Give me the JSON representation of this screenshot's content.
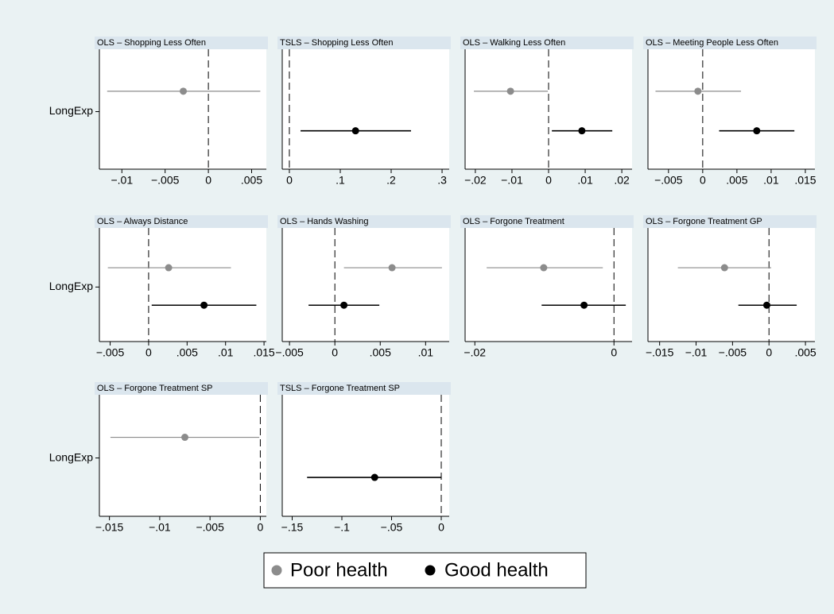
{
  "chart_data": [
    {
      "type": "coefplot",
      "title": "OLS – Shopping Less Often",
      "categories": [
        "LongExp"
      ],
      "xline": 0,
      "series": [
        {
          "name": "Poor health",
          "color": "#8c8c8c",
          "values": [
            -0.0029
          ],
          "lower": [
            -0.0117
          ],
          "upper": [
            0.006
          ]
        }
      ],
      "xlim": [
        -0.0126,
        0.0067
      ],
      "xticks": [
        {
          "value": -0.01,
          "label": "−.01"
        },
        {
          "value": -0.005,
          "label": "−.005"
        },
        0,
        {
          "value": 0.005,
          "label": ".005"
        }
      ]
    },
    {
      "type": "coefplot",
      "title": "TSLS – Shopping Less Often",
      "categories": [
        "LongExp"
      ],
      "xline": 0,
      "series": [
        {
          "name": "Good health",
          "color": "#000000",
          "values": [
            0.13
          ],
          "lower": [
            0.022
          ],
          "upper": [
            0.239
          ]
        }
      ],
      "xlim": [
        -0.014,
        0.314
      ],
      "xticks": [
        0,
        {
          "value": 0.1,
          "label": ".1"
        },
        {
          "value": 0.2,
          "label": ".2"
        },
        {
          "value": 0.3,
          "label": ".3"
        }
      ]
    },
    {
      "type": "coefplot",
      "title": "OLS – Walking Less Often",
      "categories": [
        "LongExp"
      ],
      "xline": 0,
      "series": [
        {
          "name": "Poor health",
          "color": "#8c8c8c",
          "values": [
            -0.0104
          ],
          "lower": [
            -0.0204
          ],
          "upper": [
            -0.0002
          ]
        },
        {
          "name": "Good health",
          "color": "#000000",
          "values": [
            0.0091
          ],
          "lower": [
            0.0009
          ],
          "upper": [
            0.0174
          ]
        }
      ],
      "xlim": [
        -0.0228,
        0.0228
      ],
      "xticks": [
        {
          "value": -0.02,
          "label": "−.02"
        },
        {
          "value": -0.01,
          "label": "−.01"
        },
        0,
        {
          "value": 0.01,
          "label": ".01"
        },
        {
          "value": 0.02,
          "label": ".02"
        }
      ]
    },
    {
      "type": "coefplot",
      "title": "OLS – Meeting People Less Often",
      "categories": [
        "LongExp"
      ],
      "xline": 0,
      "series": [
        {
          "name": "Poor health",
          "color": "#8c8c8c",
          "values": [
            -0.0007
          ],
          "lower": [
            -0.0069
          ],
          "upper": [
            0.0056
          ]
        },
        {
          "name": "Good health",
          "color": "#000000",
          "values": [
            0.0079
          ],
          "lower": [
            0.0024
          ],
          "upper": [
            0.0134
          ]
        }
      ],
      "xlim": [
        -0.008,
        0.0164
      ],
      "xticks": [
        {
          "value": -0.005,
          "label": "−.005"
        },
        0,
        {
          "value": 0.005,
          "label": ".005"
        },
        {
          "value": 0.01,
          "label": ".01"
        },
        {
          "value": 0.015,
          "label": ".015"
        }
      ]
    },
    {
      "type": "coefplot",
      "title": "OLS – Always Distance",
      "categories": [
        "LongExp"
      ],
      "xline": 0,
      "series": [
        {
          "name": "Poor health",
          "color": "#8c8c8c",
          "values": [
            0.0026
          ],
          "lower": [
            -0.0053
          ],
          "upper": [
            0.0107
          ]
        },
        {
          "name": "Good health",
          "color": "#000000",
          "values": [
            0.0072
          ],
          "lower": [
            0.0004
          ],
          "upper": [
            0.014
          ]
        }
      ],
      "xlim": [
        -0.0064,
        0.0153
      ],
      "xticks": [
        {
          "value": -0.005,
          "label": "−.005"
        },
        0,
        {
          "value": 0.005,
          "label": ".005"
        },
        {
          "value": 0.01,
          "label": ".01"
        },
        {
          "value": 0.015,
          "label": ".015"
        }
      ]
    },
    {
      "type": "coefplot",
      "title": "OLS – Hands Washing",
      "categories": [
        "LongExp"
      ],
      "xline": 0,
      "series": [
        {
          "name": "Poor health",
          "color": "#8c8c8c",
          "values": [
            0.0063
          ],
          "lower": [
            0.001
          ],
          "upper": [
            0.0118
          ]
        },
        {
          "name": "Good health",
          "color": "#000000",
          "values": [
            0.001
          ],
          "lower": [
            -0.0029
          ],
          "upper": [
            0.0049
          ]
        }
      ],
      "xlim": [
        -0.0058,
        0.0126
      ],
      "xticks": [
        {
          "value": -0.005,
          "label": "−.005"
        },
        0,
        {
          "value": 0.005,
          "label": ".005"
        },
        {
          "value": 0.01,
          "label": ".01"
        }
      ]
    },
    {
      "type": "coefplot",
      "title": "OLS – Forgone Treatment",
      "categories": [
        "LongExp"
      ],
      "xline": 0,
      "series": [
        {
          "name": "Poor health",
          "color": "#8c8c8c",
          "values": [
            -0.0101
          ],
          "lower": [
            -0.0183
          ],
          "upper": [
            -0.0016
          ]
        },
        {
          "name": "Good health",
          "color": "#000000",
          "values": [
            -0.0043
          ],
          "lower": [
            -0.0104
          ],
          "upper": [
            0.0017
          ]
        }
      ],
      "xlim": [
        -0.0214,
        0.0026
      ],
      "xticks": [
        {
          "value": -0.02,
          "label": "−.02"
        },
        0
      ]
    },
    {
      "type": "coefplot",
      "title": "OLS – Forgone Treatment GP",
      "categories": [
        "LongExp"
      ],
      "xline": 0,
      "series": [
        {
          "name": "Poor health",
          "color": "#8c8c8c",
          "values": [
            -0.0061
          ],
          "lower": [
            -0.0125
          ],
          "upper": [
            0.0003
          ]
        },
        {
          "name": "Good health",
          "color": "#000000",
          "values": [
            -0.0003
          ],
          "lower": [
            -0.0042
          ],
          "upper": [
            0.0038
          ]
        }
      ],
      "xlim": [
        -0.0166,
        0.0063
      ],
      "xticks": [
        {
          "value": -0.015,
          "label": "−.015"
        },
        {
          "value": -0.01,
          "label": "−.01"
        },
        {
          "value": -0.005,
          "label": "−.005"
        },
        0,
        {
          "value": 0.005,
          "label": ".005"
        }
      ]
    },
    {
      "type": "coefplot",
      "title": "OLS – Forgone Treatment SP",
      "categories": [
        "LongExp"
      ],
      "xline": 0,
      "series": [
        {
          "name": "Poor health",
          "color": "#8c8c8c",
          "values": [
            -0.0075
          ],
          "lower": [
            -0.0149
          ],
          "upper": [
            -0.0001
          ]
        }
      ],
      "xlim": [
        -0.016,
        0.0006
      ],
      "xticks": [
        {
          "value": -0.015,
          "label": "−.015"
        },
        {
          "value": -0.01,
          "label": "−.01"
        },
        {
          "value": -0.005,
          "label": "−.005"
        },
        0
      ]
    },
    {
      "type": "coefplot",
      "title": "TSLS – Forgone Treatment SP",
      "categories": [
        "LongExp"
      ],
      "xline": 0,
      "series": [
        {
          "name": "Good health",
          "color": "#000000",
          "values": [
            -0.067
          ],
          "lower": [
            -0.135
          ],
          "upper": [
            0
          ]
        }
      ],
      "xlim": [
        -0.16,
        0.008
      ],
      "xticks": [
        {
          "value": -0.15,
          "label": "−.15"
        },
        {
          "value": -0.1,
          "label": "−.1"
        },
        {
          "value": -0.05,
          "label": "−.05"
        },
        0
      ]
    }
  ]
}
